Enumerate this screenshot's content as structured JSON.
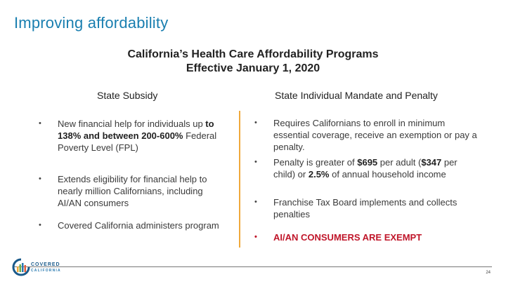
{
  "slide": {
    "title": "Improving affordability",
    "subtitle_line1": "California’s Health Care Affordability Programs",
    "subtitle_line2": "Effective January 1, 2020"
  },
  "left_column": {
    "heading": "State Subsidy",
    "bullets": [
      {
        "pre": "New financial help for individuals up ",
        "bold": "to 138%  and between 200-600%",
        "post": " Federal Poverty Level (FPL)"
      },
      {
        "text": "Extends eligibility for financial help to nearly million Californians, including AI/AN consumers"
      },
      {
        "text": "Covered California administers program"
      }
    ]
  },
  "right_column": {
    "heading": "State Individual Mandate and Penalty",
    "bullets": [
      {
        "text": "Requires Californians to enroll in minimum essential coverage, receive an exemption or pay a penalty."
      },
      {
        "pre": "Penalty is greater of ",
        "b1": "$695",
        "mid1": " per adult (",
        "b2": "$347",
        "mid2": " per child) or ",
        "b3": "2.5%",
        "post": "  of annual household income"
      },
      {
        "text": "Franchise Tax Board implements and collects penalties"
      },
      {
        "text": "AI/AN CONSUMERS ARE EXEMPT"
      }
    ]
  },
  "footer": {
    "logo_word": "COVERED",
    "logo_sub": "CALIFORNIA",
    "page_number": "24"
  },
  "bullet_glyph": "•",
  "colors": {
    "title_blue": "#1a7fb0",
    "divider_orange": "#f0a93b",
    "exempt_red": "#c0162a"
  }
}
